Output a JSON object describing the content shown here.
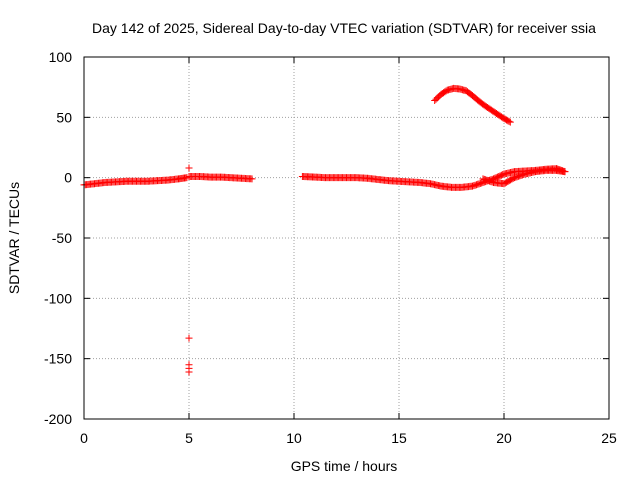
{
  "chart_data": {
    "type": "scatter",
    "title": "Day 142 of 2025, Sidereal Day-to-day VTEC variation (SDTVAR) for receiver ssia",
    "xlabel": "GPS time / hours",
    "ylabel": "SDTVAR / TECUs",
    "xlim": [
      0,
      25
    ],
    "ylim": [
      -200,
      100
    ],
    "xticks": [
      0,
      5,
      10,
      15,
      20,
      25
    ],
    "xtick_labels": [
      "0",
      "5",
      "10",
      "15",
      "20",
      "25"
    ],
    "yticks": [
      -200,
      -150,
      -100,
      -50,
      0,
      50,
      100
    ],
    "ytick_labels": [
      "-200",
      "-150",
      "-100",
      "-50",
      "0",
      "50",
      "100"
    ],
    "grid": true,
    "marker": "+",
    "colors": {
      "points": "#ff0000",
      "grid": "#a0a0a0",
      "axes": "#000000"
    },
    "series": [
      {
        "name": "SDTVAR",
        "segments": [
          {
            "x": [
              0.0,
              0.5,
              1.0,
              1.5,
              2.0,
              2.5,
              3.0,
              3.5,
              4.0,
              4.5,
              4.9
            ],
            "y": [
              -6,
              -5,
              -4,
              -3.5,
              -3,
              -3,
              -3,
              -2.5,
              -2,
              -1,
              0
            ]
          },
          {
            "x": [
              5.0,
              5.5,
              6.0,
              6.5,
              7.0,
              7.5,
              8.0
            ],
            "y": [
              1,
              1,
              0.5,
              0.5,
              0,
              -0.5,
              -1
            ]
          },
          {
            "x": [
              10.4,
              11.0,
              11.5,
              12.0,
              12.5,
              13.0,
              13.5,
              14.0,
              14.5,
              15.0,
              15.5,
              16.0,
              16.5,
              17.0,
              17.5,
              18.0,
              18.5,
              19.0,
              19.5,
              20.0,
              20.5,
              21.0,
              21.5,
              22.0,
              22.5,
              22.9
            ],
            "y": [
              1,
              0.5,
              0,
              0,
              0,
              0,
              -0.5,
              -1.5,
              -2.5,
              -3,
              -3.5,
              -4,
              -5,
              -7,
              -8,
              -8,
              -7,
              -4,
              -1,
              3,
              5,
              5.5,
              6,
              7,
              7.5,
              5
            ]
          },
          {
            "x": [
              19.0,
              19.5,
              20.0,
              20.5,
              21.0,
              21.5,
              22.0,
              22.5,
              22.9
            ],
            "y": [
              -1,
              -4,
              -5,
              0,
              3,
              5,
              6,
              6,
              5
            ]
          },
          {
            "x": [
              16.7,
              17.0,
              17.3,
              17.6,
              17.9,
              18.2,
              18.5,
              18.8,
              19.1,
              19.4,
              19.7,
              20.0,
              20.3
            ],
            "y": [
              64,
              69,
              72.5,
              74,
              73.5,
              72,
              68,
              63.5,
              59.5,
              56,
              52.5,
              49,
              46
            ]
          },
          {
            "x": [
              5.0,
              5.0,
              5.0,
              5.0,
              5.0,
              5.0
            ],
            "y": [
              8,
              1,
              -133,
              -155,
              -158,
              -161
            ]
          }
        ]
      }
    ]
  }
}
